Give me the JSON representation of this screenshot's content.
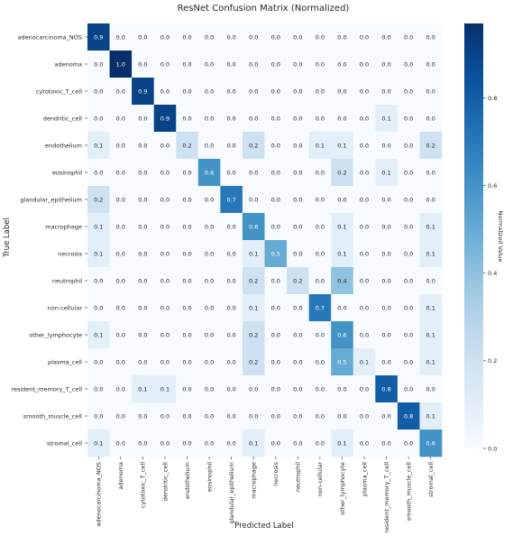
{
  "chart_data": {
    "type": "heatmap",
    "title": "ResNet Confusion Matrix (Normalized)",
    "xlabel": "Predicted Label",
    "ylabel": "True Label",
    "categories": [
      "adenocarcinoma_NOS",
      "adenoma",
      "cytotoxic_T_cell",
      "dendritic_cell",
      "endothelium",
      "eosinophil",
      "glandular_epithelium",
      "macrophage",
      "necrosis",
      "neutrophil",
      "non-cellular",
      "other_lymphocyte",
      "plasma_cell",
      "resident_memory_T_cell",
      "smooth_muscle_cell",
      "stromal_cell"
    ],
    "matrix": [
      [
        0.9,
        0.0,
        0.0,
        0.0,
        0.0,
        0.0,
        0.0,
        0.0,
        0.0,
        0.0,
        0.0,
        0.0,
        0.0,
        0.0,
        0.0,
        0.0
      ],
      [
        0.0,
        1.0,
        0.0,
        0.0,
        0.0,
        0.0,
        0.0,
        0.0,
        0.0,
        0.0,
        0.0,
        0.0,
        0.0,
        0.0,
        0.0,
        0.0
      ],
      [
        0.0,
        0.0,
        0.9,
        0.0,
        0.0,
        0.0,
        0.0,
        0.0,
        0.0,
        0.0,
        0.0,
        0.0,
        0.0,
        0.0,
        0.0,
        0.0
      ],
      [
        0.0,
        0.0,
        0.0,
        0.9,
        0.0,
        0.0,
        0.0,
        0.0,
        0.0,
        0.0,
        0.0,
        0.0,
        0.0,
        0.1,
        0.0,
        0.0
      ],
      [
        0.1,
        0.0,
        0.0,
        0.0,
        0.2,
        0.0,
        0.0,
        0.2,
        0.0,
        0.0,
        0.1,
        0.1,
        0.0,
        0.0,
        0.0,
        0.2
      ],
      [
        0.0,
        0.0,
        0.0,
        0.0,
        0.0,
        0.6,
        0.0,
        0.0,
        0.0,
        0.0,
        0.0,
        0.2,
        0.0,
        0.1,
        0.0,
        0.0
      ],
      [
        0.2,
        0.0,
        0.0,
        0.0,
        0.0,
        0.0,
        0.7,
        0.0,
        0.0,
        0.0,
        0.0,
        0.0,
        0.0,
        0.0,
        0.0,
        0.0
      ],
      [
        0.1,
        0.0,
        0.0,
        0.0,
        0.0,
        0.0,
        0.0,
        0.6,
        0.0,
        0.0,
        0.0,
        0.1,
        0.0,
        0.0,
        0.0,
        0.1
      ],
      [
        0.1,
        0.0,
        0.0,
        0.0,
        0.0,
        0.0,
        0.0,
        0.1,
        0.5,
        0.0,
        0.0,
        0.1,
        0.0,
        0.0,
        0.0,
        0.1
      ],
      [
        0.0,
        0.0,
        0.0,
        0.0,
        0.0,
        0.0,
        0.0,
        0.2,
        0.0,
        0.2,
        0.0,
        0.4,
        0.0,
        0.0,
        0.0,
        0.0
      ],
      [
        0.0,
        0.0,
        0.0,
        0.0,
        0.0,
        0.0,
        0.0,
        0.1,
        0.0,
        0.0,
        0.7,
        0.0,
        0.0,
        0.0,
        0.0,
        0.1
      ],
      [
        0.1,
        0.0,
        0.0,
        0.0,
        0.0,
        0.0,
        0.0,
        0.2,
        0.0,
        0.0,
        0.0,
        0.6,
        0.0,
        0.0,
        0.0,
        0.1
      ],
      [
        0.0,
        0.0,
        0.0,
        0.0,
        0.0,
        0.0,
        0.0,
        0.2,
        0.0,
        0.0,
        0.0,
        0.5,
        0.1,
        0.0,
        0.0,
        0.1
      ],
      [
        0.0,
        0.0,
        0.1,
        0.1,
        0.0,
        0.0,
        0.0,
        0.0,
        0.0,
        0.0,
        0.0,
        0.0,
        0.0,
        0.8,
        0.0,
        0.0
      ],
      [
        0.0,
        0.0,
        0.0,
        0.0,
        0.0,
        0.0,
        0.0,
        0.0,
        0.0,
        0.0,
        0.0,
        0.0,
        0.0,
        0.0,
        0.8,
        0.1
      ],
      [
        0.1,
        0.0,
        0.0,
        0.0,
        0.0,
        0.0,
        0.0,
        0.1,
        0.0,
        0.0,
        0.0,
        0.1,
        0.0,
        0.0,
        0.0,
        0.6
      ]
    ],
    "colorbar": {
      "label": "Normalized Value",
      "range": [
        0.0,
        0.97
      ],
      "ticks": [
        "0.0",
        "0.2",
        "0.4",
        "0.6",
        "0.8"
      ],
      "colormap": "Blues",
      "low_color": "#f7fbff",
      "high_color": "#08306b"
    },
    "grid": false
  }
}
